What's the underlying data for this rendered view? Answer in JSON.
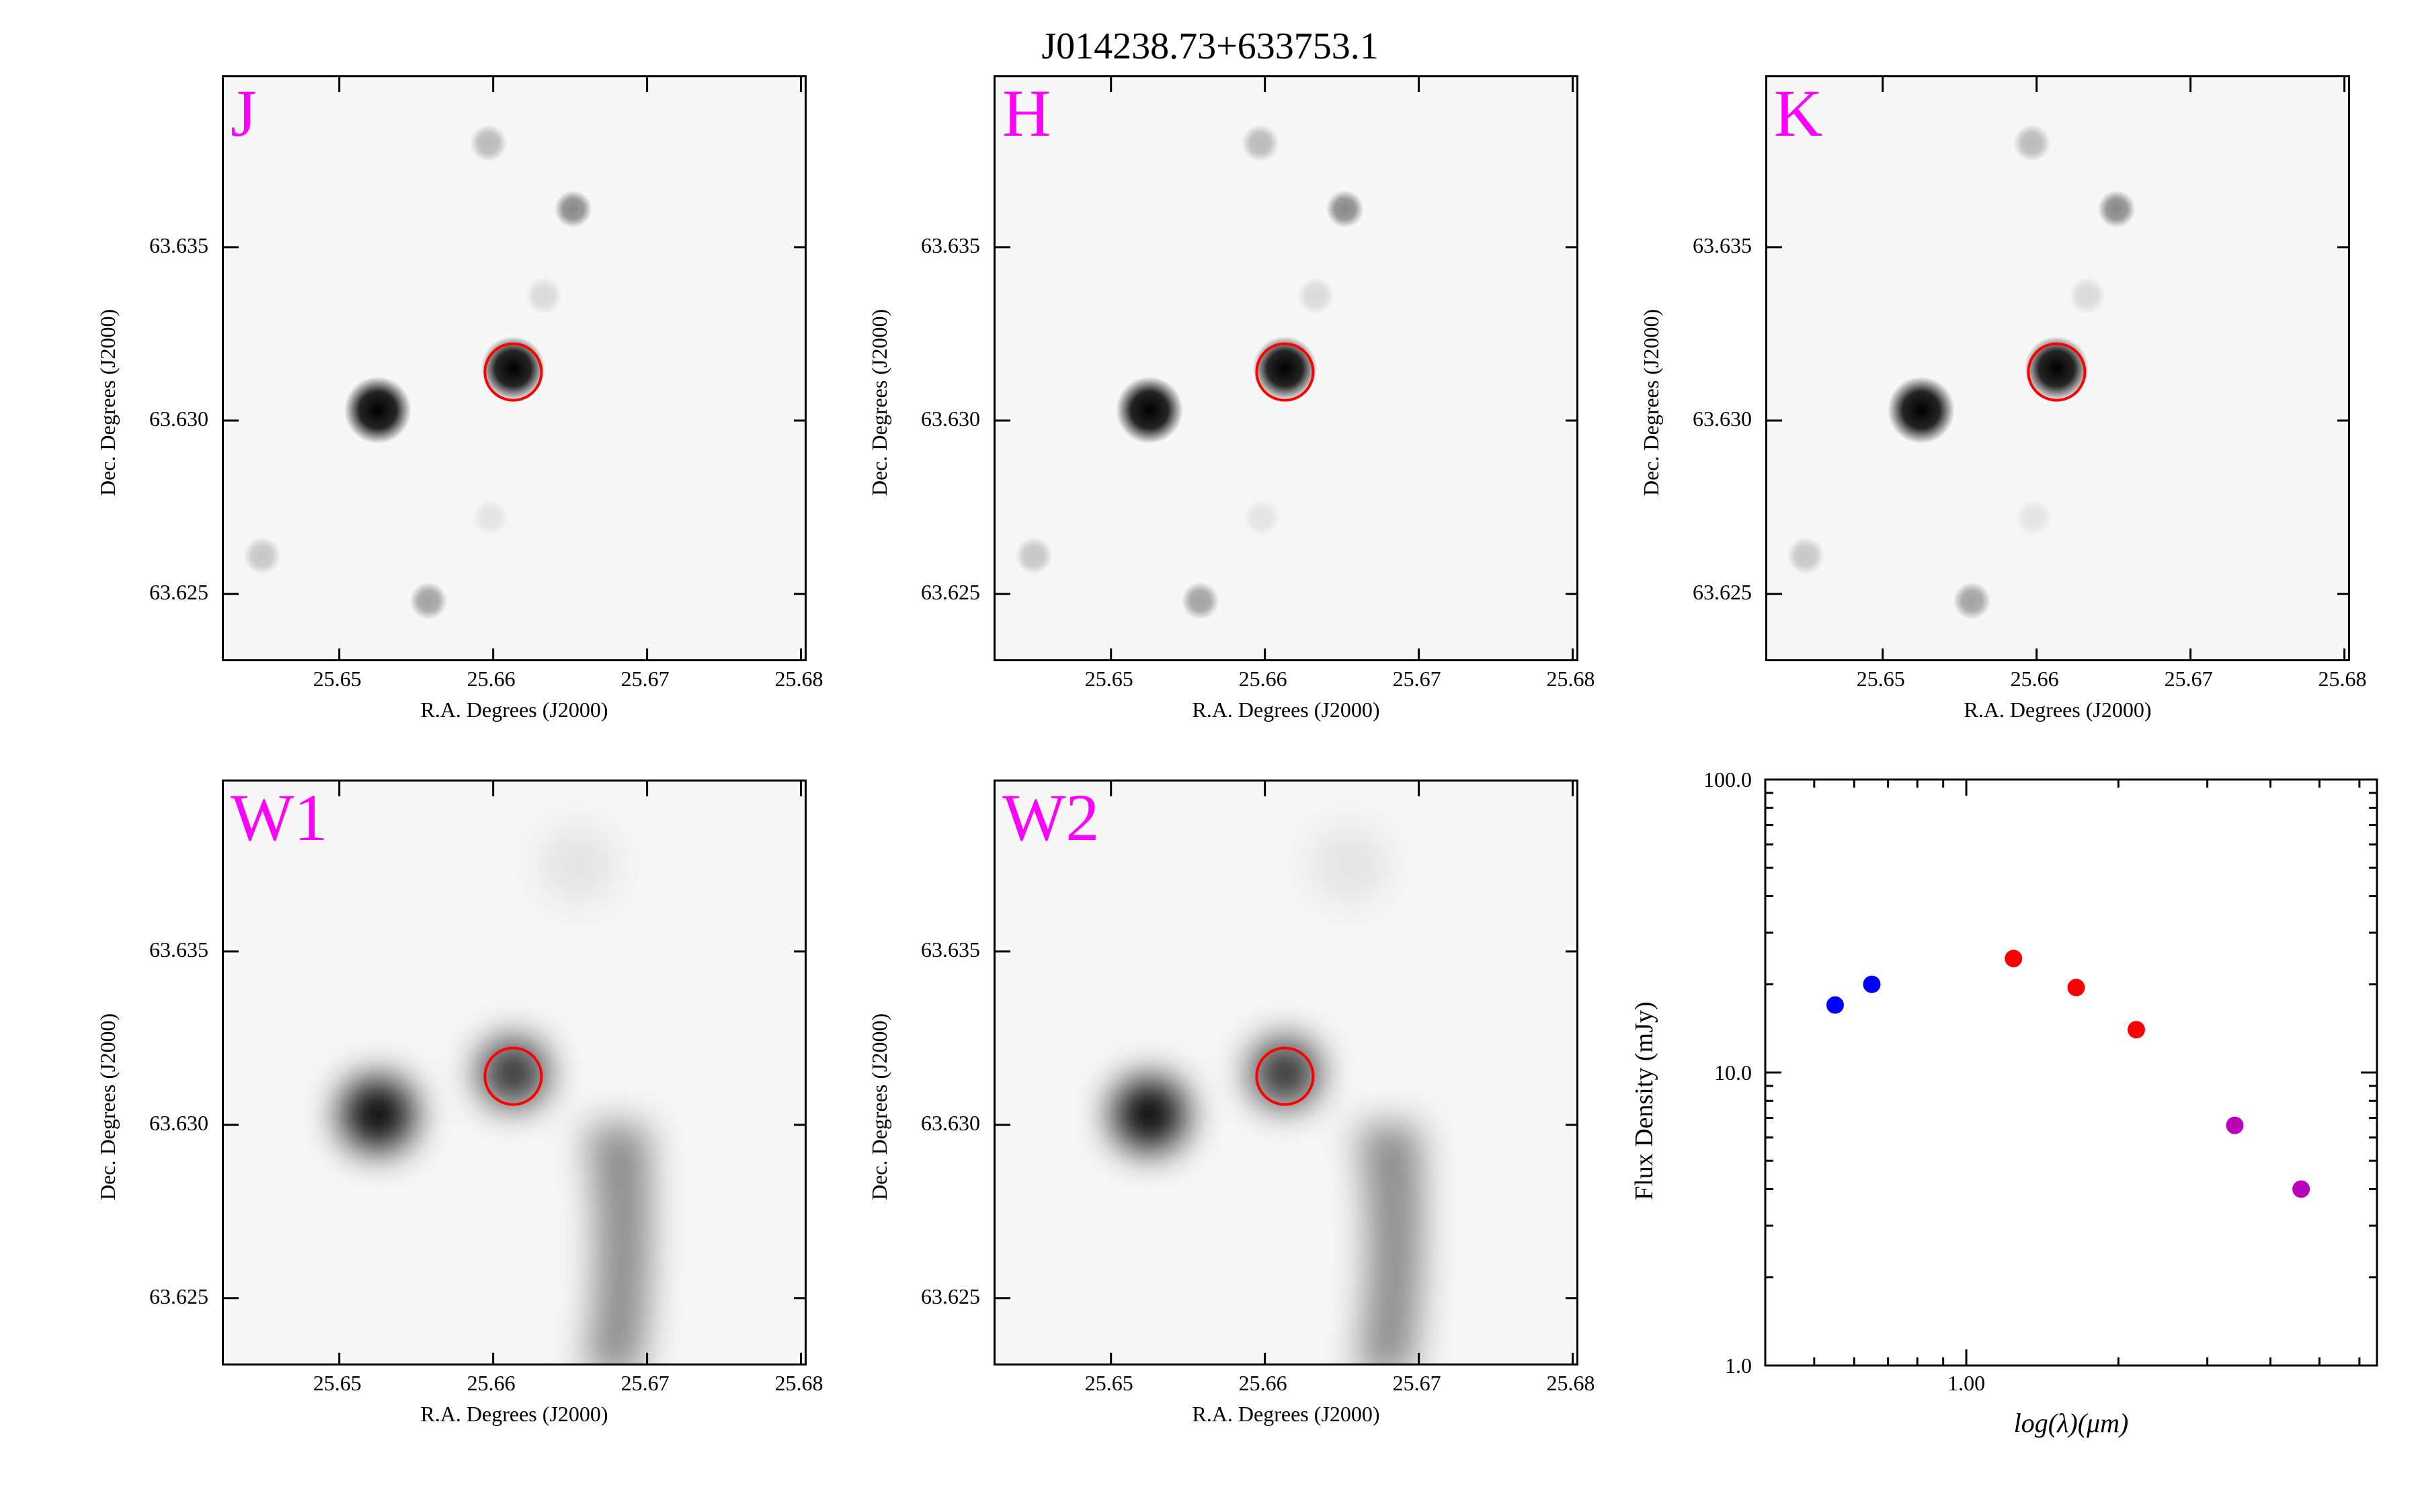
{
  "figure": {
    "title": "J014238.73+633753.1"
  },
  "image_panels": [
    {
      "band": "J",
      "xlabel": "R.A. Degrees (J2000)",
      "ylabel": "Dec. Degrees (J2000)",
      "xticks": [
        "25.65",
        "25.66",
        "25.67",
        "25.68"
      ],
      "yticks": [
        "63.635",
        "63.630",
        "63.625"
      ],
      "style": "sharp"
    },
    {
      "band": "H",
      "xlabel": "R.A. Degrees (J2000)",
      "ylabel": "Dec. Degrees (J2000)",
      "xticks": [
        "25.65",
        "25.66",
        "25.67",
        "25.68"
      ],
      "yticks": [
        "63.635",
        "63.630",
        "63.625"
      ],
      "style": "sharp"
    },
    {
      "band": "K",
      "xlabel": "R.A. Degrees (J2000)",
      "ylabel": "Dec. Degrees (J2000)",
      "xticks": [
        "25.65",
        "25.66",
        "25.67",
        "25.68"
      ],
      "yticks": [
        "63.635",
        "63.630",
        "63.625"
      ],
      "style": "sharp"
    },
    {
      "band": "W1",
      "xlabel": "R.A. Degrees (J2000)",
      "ylabel": "Dec. Degrees (J2000)",
      "xticks": [
        "25.65",
        "25.66",
        "25.67",
        "25.68"
      ],
      "yticks": [
        "63.635",
        "63.630",
        "63.625"
      ],
      "style": "blurred"
    },
    {
      "band": "W2",
      "xlabel": "R.A. Degrees (J2000)",
      "ylabel": "Dec. Degrees (J2000)",
      "xticks": [
        "25.65",
        "25.66",
        "25.67",
        "25.68"
      ],
      "yticks": [
        "63.635",
        "63.630",
        "63.625"
      ],
      "style": "blurred"
    }
  ],
  "chart_data": {
    "type": "scatter",
    "title": "",
    "xlabel": "log(λ)(μm)",
    "ylabel": "Flux Density (mJy)",
    "xscale": "log",
    "yscale": "log",
    "xlim": [
      0.4,
      6.5
    ],
    "ylim": [
      1.0,
      100.0
    ],
    "xticks": [
      "1.00"
    ],
    "yticks": [
      "1.0",
      "10.0",
      "100.0"
    ],
    "series": [
      {
        "color": "#0000ff",
        "x": [
          0.55,
          0.65
        ],
        "y": [
          17.0,
          20.0
        ]
      },
      {
        "color": "#ff0000",
        "x": [
          1.24,
          1.65,
          2.17
        ],
        "y": [
          24.5,
          19.5,
          14.0
        ]
      },
      {
        "color": "#bb00bb",
        "x": [
          3.4,
          4.6
        ],
        "y": [
          6.6,
          4.0
        ]
      }
    ]
  }
}
